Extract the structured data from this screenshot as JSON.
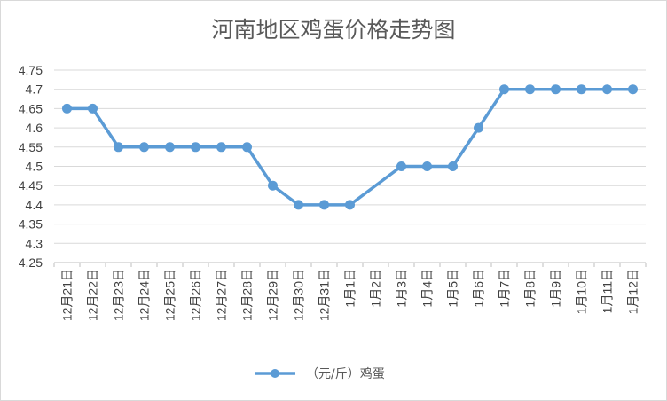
{
  "chart_data": {
    "type": "line",
    "title": "河南地区鸡蛋价格走势图",
    "xlabel": "",
    "ylabel": "",
    "categories": [
      "12月21日",
      "12月22日",
      "12月23日",
      "12月24日",
      "12月25日",
      "12月26日",
      "12月27日",
      "12月28日",
      "12月29日",
      "12月30日",
      "12月31日",
      "1月1日",
      "1月2日",
      "1月3日",
      "1月4日",
      "1月5日",
      "1月6日",
      "1月7日",
      "1月8日",
      "1月9日",
      "1月10日",
      "1月11日",
      "1月12日"
    ],
    "series": [
      {
        "name": "（元/斤）鸡蛋",
        "values": [
          4.65,
          4.65,
          4.55,
          4.55,
          4.55,
          4.55,
          4.55,
          4.55,
          4.45,
          4.4,
          4.4,
          4.4,
          null,
          4.5,
          4.5,
          4.5,
          4.6,
          4.7,
          4.7,
          4.7,
          4.7,
          4.7,
          4.7
        ]
      }
    ],
    "ylim": [
      4.25,
      4.75
    ],
    "yticks": [
      "4.25",
      "4.3",
      "4.35",
      "4.4",
      "4.45",
      "4.5",
      "4.55",
      "4.6",
      "4.65",
      "4.7",
      "4.75"
    ],
    "grid": true,
    "legend_position": "bottom",
    "colors": {
      "series": "#5b9bd5",
      "grid": "#d9d9d9",
      "axis": "#bfbfbf"
    }
  }
}
